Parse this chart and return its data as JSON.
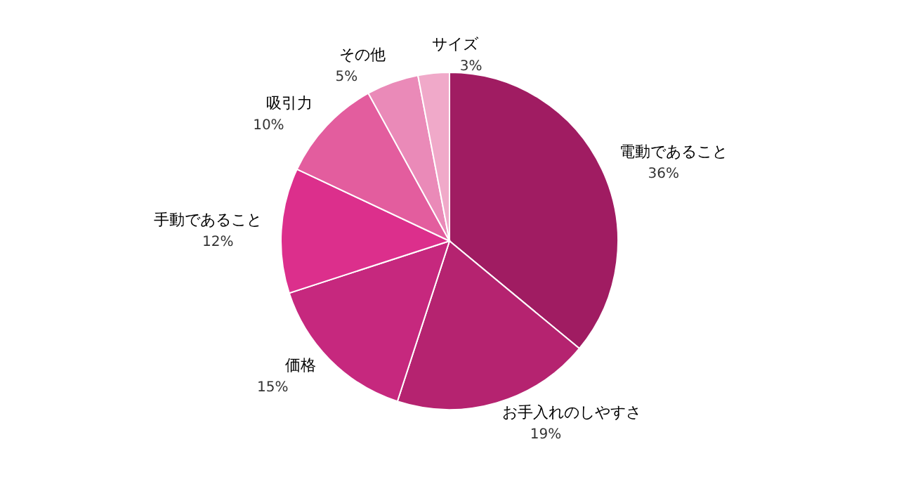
{
  "chart_data": {
    "type": "pie",
    "categories": [
      "電動であること",
      "お手入れのしやすさ",
      "価格",
      "手動であること",
      "吸引力",
      "その他",
      "サイズ"
    ],
    "values": [
      36,
      19,
      15,
      12,
      10,
      5,
      3
    ],
    "colors": [
      "#a01c62",
      "#b52370",
      "#c6287e",
      "#dc2f8c",
      "#e35d9e",
      "#ea8ab8",
      "#f0a9c9"
    ],
    "value_labels": [
      "36%",
      "19%",
      "15%",
      "12%",
      "10%",
      "5%",
      "3%"
    ]
  }
}
